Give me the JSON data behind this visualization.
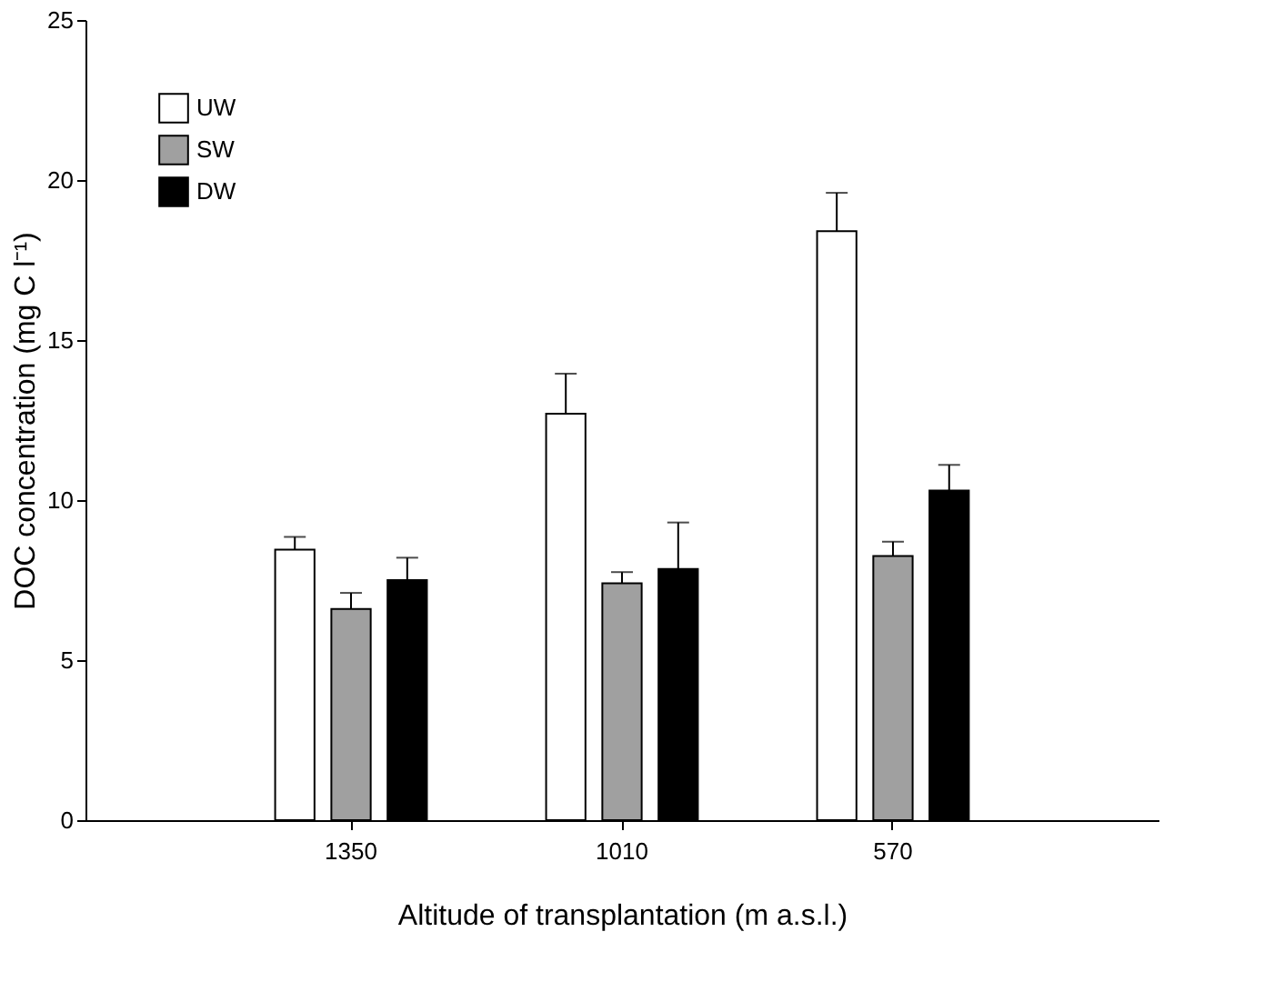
{
  "chart_data": {
    "type": "bar",
    "xlabel": "Altitude of transplantation (m a.s.l.)",
    "ylabel": "DOC concentration (mg C l⁻¹)",
    "categories": [
      "1350",
      "1010",
      "570"
    ],
    "series": [
      {
        "name": "UW",
        "color": "#ffffff",
        "values": [
          8.45,
          12.7,
          18.4
        ],
        "errors": [
          [
            8.45,
            8.85
          ],
          [
            12.7,
            13.95
          ],
          [
            18.4,
            19.6
          ]
        ]
      },
      {
        "name": "SW",
        "color": "#a0a0a0",
        "values": [
          6.6,
          7.4,
          8.25
        ],
        "errors": [
          [
            6.6,
            7.1
          ],
          [
            7.4,
            7.75
          ],
          [
            8.25,
            8.7
          ]
        ]
      },
      {
        "name": "DW",
        "color": "#000000",
        "values": [
          7.5,
          7.85,
          10.3
        ],
        "errors": [
          [
            7.5,
            8.2
          ],
          [
            7.85,
            9.3
          ],
          [
            10.3,
            11.1
          ]
        ]
      }
    ],
    "ylim": [
      0,
      25
    ],
    "yticks": [
      0,
      5,
      10,
      15,
      20,
      25
    ],
    "grid": false,
    "legend": "top left"
  }
}
